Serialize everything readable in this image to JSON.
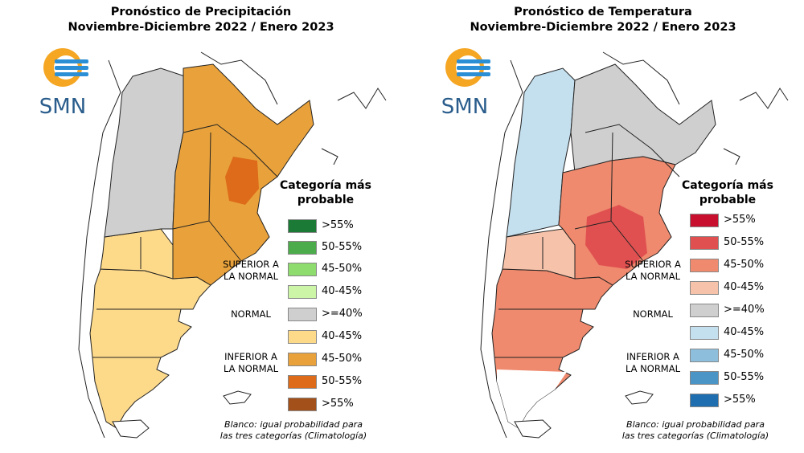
{
  "panels": [
    {
      "title_line1": "Pronóstico de Precipitación",
      "title_line2": "Noviembre-Diciembre 2022 / Enero 2023",
      "logo_text": "SMN",
      "legend_title_line1": "Categoría más",
      "legend_title_line2": "probable",
      "group_superior_line1": "SUPERIOR A",
      "group_superior_line2": "LA NORMAL",
      "group_normal": "NORMAL",
      "group_inferior_line1": "INFERIOR A",
      "group_inferior_line2": "LA NORMAL",
      "legend": [
        {
          "label": ">55%",
          "color": "#1a7a36"
        },
        {
          "label": "50-55%",
          "color": "#4cac4c"
        },
        {
          "label": "45-50%",
          "color": "#8edb6e"
        },
        {
          "label": "40-45%",
          "color": "#ccf5a8"
        },
        {
          "label": ">=40%",
          "color": "#cfcfcf"
        },
        {
          "label": "40-45%",
          "color": "#fdd98a"
        },
        {
          "label": "45-50%",
          "color": "#e9a23b"
        },
        {
          "label": "50-55%",
          "color": "#dd6b1a"
        },
        {
          "label": ">55%",
          "color": "#a4501a"
        }
      ],
      "note_line1": "Blanco: igual probabilidad para",
      "note_line2": "las tres categorías (Climatología)"
    },
    {
      "title_line1": "Pronóstico de Temperatura",
      "title_line2": "Noviembre-Diciembre 2022 / Enero 2023",
      "logo_text": "SMN",
      "legend_title_line1": "Categoría más",
      "legend_title_line2": "probable",
      "group_superior_line1": "SUPERIOR A",
      "group_superior_line2": "LA NORMAL",
      "group_normal": "NORMAL",
      "group_inferior_line1": "INFERIOR A",
      "group_inferior_line2": "LA NORMAL",
      "legend": [
        {
          "label": ">55%",
          "color": "#c8102e"
        },
        {
          "label": "50-55%",
          "color": "#e05050"
        },
        {
          "label": "45-50%",
          "color": "#ef8a6e"
        },
        {
          "label": "40-45%",
          "color": "#f6c3aa"
        },
        {
          "label": ">=40%",
          "color": "#cfcfcf"
        },
        {
          "label": "40-45%",
          "color": "#c4dfee"
        },
        {
          "label": "45-50%",
          "color": "#8dbfdd"
        },
        {
          "label": "50-55%",
          "color": "#4a95c6"
        },
        {
          "label": ">55%",
          "color": "#1f6fb0"
        }
      ],
      "note_line1": "Blanco: igual probabilidad para",
      "note_line2": "las tres categorías (Climatología)"
    }
  ]
}
